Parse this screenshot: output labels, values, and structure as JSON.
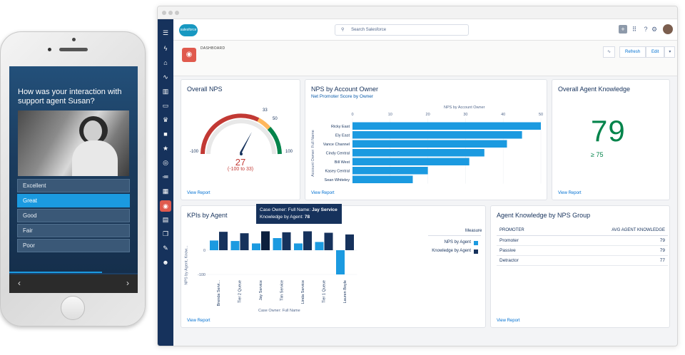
{
  "phone": {
    "question": "How was your interaction with support agent Susan?",
    "options": [
      "Excellent",
      "Great",
      "Good",
      "Fair",
      "Poor"
    ],
    "selected_option": "Great",
    "nav_prev": "‹",
    "nav_next": "›"
  },
  "header": {
    "logo_text": "salesforce",
    "search_placeholder": "Search Salesforce",
    "icons": [
      "plus-icon",
      "app-launcher-icon",
      "help-icon",
      "settings-icon",
      "notification-icon",
      "avatar"
    ]
  },
  "page": {
    "object_label": "DASHBOARD",
    "buttons": {
      "refresh": "Refresh",
      "edit": "Edit"
    }
  },
  "sidebar": {
    "icons": [
      "menu-icon",
      "lightning-icon",
      "home-icon",
      "pulse-icon",
      "chart-icon",
      "card-icon",
      "crown-icon",
      "briefcase-icon",
      "star-icon",
      "target-icon",
      "list-icon",
      "calendar-icon",
      "dashboard-icon",
      "clipboard-icon",
      "copy-icon",
      "edit-icon",
      "people-icon"
    ],
    "active": "dashboard-icon"
  },
  "cards": {
    "overall_nps": {
      "title": "Overall NPS",
      "value": "27",
      "range": "(-100 to 33)",
      "labels": {
        "min": "-100",
        "max": "100",
        "b1": "33",
        "b2": "50"
      },
      "view_report": "View Report"
    },
    "nps_by_owner": {
      "title": "NPS by Account Owner",
      "subtitle": "Net Promoter Score by Owner",
      "view_report": "View Report"
    },
    "agent_knowledge": {
      "title": "Overall Agent Knowledge",
      "value": "79",
      "target": "≥ 75",
      "view_report": "View Report"
    },
    "kpis_by_agent": {
      "title": "KPIs by Agent",
      "view_report": "View Report",
      "tooltip": {
        "owner_label": "Case Owner: Full Name: ",
        "owner_value": "Jay Service",
        "knowledge_label": "Knowledge by Agent: ",
        "knowledge_value": "78"
      },
      "legend_title": "Measure"
    },
    "knowledge_by_nps": {
      "title": "Agent Knowledge by NPS Group",
      "col_left": "PROMOTER",
      "col_right": "AVG AGENT KNOWLEDGE",
      "rows": [
        {
          "group": "Promoter",
          "value": "79"
        },
        {
          "group": "Passive",
          "value": "79"
        },
        {
          "group": "Detractor",
          "value": "77"
        }
      ],
      "view_report": "View Report"
    }
  },
  "chart_data": [
    {
      "type": "bar",
      "orientation": "horizontal",
      "title": "NPS by Account Owner",
      "ylabel": "Account Owner: Full Name",
      "categories": [
        "Ricky East",
        "Ely East",
        "Vance Channel",
        "Cindy Central",
        "Bill West",
        "Kasey Central",
        "Sean Whiteley"
      ],
      "values": [
        50,
        45,
        41,
        35,
        31,
        20,
        16
      ],
      "xlim": [
        0,
        50
      ],
      "xticks": [
        0,
        10,
        20,
        30,
        40,
        50
      ],
      "color": "#1b9ae0"
    },
    {
      "type": "bar",
      "title": "",
      "xlabel": "Case Owner: Full Name",
      "ylabel": "NPS by Agent, Know...",
      "categories": [
        "Brenda Servi...",
        "Tier 2 Queue",
        "Jay Service",
        "Tim Service",
        "Linda Service",
        "Tier 1 Queue",
        "Lauren Boyle"
      ],
      "series": [
        {
          "name": "NPS by Agent",
          "values": [
            40,
            38,
            28,
            50,
            28,
            34,
            -100
          ],
          "color": "#1b9ae0"
        },
        {
          "name": "Knowledge by Agent",
          "values": [
            76,
            70,
            78,
            74,
            78,
            72,
            65
          ],
          "color": "#16325c"
        }
      ],
      "yticks": [
        0,
        -100
      ],
      "ylim": [
        -100,
        100
      ]
    }
  ]
}
